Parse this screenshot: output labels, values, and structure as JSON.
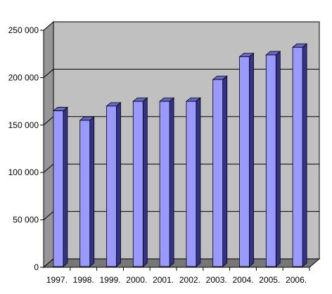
{
  "chart_data": {
    "type": "bar",
    "title": "",
    "xlabel": "",
    "ylabel": "",
    "categories": [
      "1997.",
      "1998.",
      "1999.",
      "2000.",
      "2001.",
      "2002.",
      "2003.",
      "2004.",
      "2005.",
      "2006."
    ],
    "values": [
      165000,
      155000,
      170000,
      175000,
      175000,
      175000,
      198000,
      222000,
      224000,
      232000
    ],
    "ylim": [
      0,
      250000
    ],
    "yticks": [
      0,
      50000,
      100000,
      150000,
      200000,
      250000
    ],
    "ytick_labels": [
      "0",
      "50 000",
      "100 000",
      "150 000",
      "200 000",
      "250 000"
    ],
    "grid": true,
    "style": "3d-column",
    "colors": {
      "bar_front": "#9999ff",
      "bar_side": "#33338a",
      "bar_top": "#6666cc",
      "plot_back": "#c0c0c0",
      "plot_side": "#969696",
      "floor": "#777777",
      "grid": "#000000"
    }
  }
}
